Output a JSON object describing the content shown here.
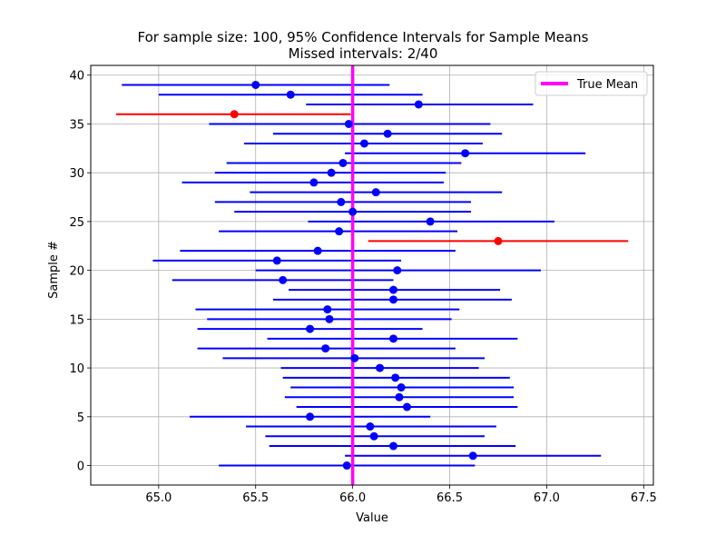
{
  "chart_data": {
    "type": "scatter",
    "title": "For sample size: 100, 95% Confidence Intervals for Sample Means",
    "subtitle": "Missed intervals: 2/40",
    "xlabel": "Value",
    "ylabel": "Sample #",
    "xlim": [
      64.65,
      67.55
    ],
    "ylim": [
      -2,
      41
    ],
    "xticks": [
      "65.0",
      "65.5",
      "66.0",
      "66.5",
      "67.0",
      "67.5"
    ],
    "yticks": [
      "0",
      "5",
      "10",
      "15",
      "20",
      "25",
      "30",
      "35",
      "40"
    ],
    "grid": true,
    "legend_position": "top-right",
    "true_mean": 66.0,
    "true_mean_label": "True Mean",
    "colors": {
      "hit": "#0000ff",
      "miss": "#ff0000",
      "true_mean": "#ff00ff"
    },
    "intervals": [
      {
        "sample": 0,
        "mean": 65.97,
        "low": 65.31,
        "high": 66.63,
        "missed": false
      },
      {
        "sample": 1,
        "mean": 66.62,
        "low": 65.96,
        "high": 67.28,
        "missed": false
      },
      {
        "sample": 2,
        "mean": 66.21,
        "low": 65.57,
        "high": 66.84,
        "missed": false
      },
      {
        "sample": 3,
        "mean": 66.11,
        "low": 65.55,
        "high": 66.68,
        "missed": false
      },
      {
        "sample": 4,
        "mean": 66.09,
        "low": 65.45,
        "high": 66.74,
        "missed": false
      },
      {
        "sample": 5,
        "mean": 65.78,
        "low": 65.16,
        "high": 66.4,
        "missed": false
      },
      {
        "sample": 6,
        "mean": 66.28,
        "low": 65.71,
        "high": 66.85,
        "missed": false
      },
      {
        "sample": 7,
        "mean": 66.24,
        "low": 65.65,
        "high": 66.83,
        "missed": false
      },
      {
        "sample": 8,
        "mean": 66.25,
        "low": 65.68,
        "high": 66.83,
        "missed": false
      },
      {
        "sample": 9,
        "mean": 66.22,
        "low": 65.64,
        "high": 66.81,
        "missed": false
      },
      {
        "sample": 10,
        "mean": 66.14,
        "low": 65.63,
        "high": 66.65,
        "missed": false
      },
      {
        "sample": 11,
        "mean": 66.01,
        "low": 65.33,
        "high": 66.68,
        "missed": false
      },
      {
        "sample": 12,
        "mean": 65.86,
        "low": 65.2,
        "high": 66.53,
        "missed": false
      },
      {
        "sample": 13,
        "mean": 66.21,
        "low": 65.56,
        "high": 66.85,
        "missed": false
      },
      {
        "sample": 14,
        "mean": 65.78,
        "low": 65.2,
        "high": 66.36,
        "missed": false
      },
      {
        "sample": 15,
        "mean": 65.88,
        "low": 65.25,
        "high": 66.51,
        "missed": false
      },
      {
        "sample": 16,
        "mean": 65.87,
        "low": 65.19,
        "high": 66.55,
        "missed": false
      },
      {
        "sample": 17,
        "mean": 66.21,
        "low": 65.59,
        "high": 66.82,
        "missed": false
      },
      {
        "sample": 18,
        "mean": 66.21,
        "low": 65.67,
        "high": 66.76,
        "missed": false
      },
      {
        "sample": 19,
        "mean": 65.64,
        "low": 65.07,
        "high": 66.21,
        "missed": false
      },
      {
        "sample": 20,
        "mean": 66.23,
        "low": 65.5,
        "high": 66.97,
        "missed": false
      },
      {
        "sample": 21,
        "mean": 65.61,
        "low": 64.97,
        "high": 66.25,
        "missed": false
      },
      {
        "sample": 22,
        "mean": 65.82,
        "low": 65.11,
        "high": 66.53,
        "missed": false
      },
      {
        "sample": 23,
        "mean": 66.75,
        "low": 66.08,
        "high": 67.42,
        "missed": true
      },
      {
        "sample": 24,
        "mean": 65.93,
        "low": 65.31,
        "high": 66.54,
        "missed": false
      },
      {
        "sample": 25,
        "mean": 66.4,
        "low": 65.77,
        "high": 67.04,
        "missed": false
      },
      {
        "sample": 26,
        "mean": 66.0,
        "low": 65.39,
        "high": 66.61,
        "missed": false
      },
      {
        "sample": 27,
        "mean": 65.94,
        "low": 65.29,
        "high": 66.61,
        "missed": false
      },
      {
        "sample": 28,
        "mean": 66.12,
        "low": 65.47,
        "high": 66.77,
        "missed": false
      },
      {
        "sample": 29,
        "mean": 65.8,
        "low": 65.12,
        "high": 66.47,
        "missed": false
      },
      {
        "sample": 30,
        "mean": 65.89,
        "low": 65.29,
        "high": 66.48,
        "missed": false
      },
      {
        "sample": 31,
        "mean": 65.95,
        "low": 65.35,
        "high": 66.56,
        "missed": false
      },
      {
        "sample": 32,
        "mean": 66.58,
        "low": 65.96,
        "high": 67.2,
        "missed": false
      },
      {
        "sample": 33,
        "mean": 66.06,
        "low": 65.44,
        "high": 66.67,
        "missed": false
      },
      {
        "sample": 34,
        "mean": 66.18,
        "low": 65.59,
        "high": 66.77,
        "missed": false
      },
      {
        "sample": 35,
        "mean": 65.98,
        "low": 65.26,
        "high": 66.71,
        "missed": false
      },
      {
        "sample": 36,
        "mean": 65.39,
        "low": 64.78,
        "high": 65.99,
        "missed": true
      },
      {
        "sample": 37,
        "mean": 66.34,
        "low": 65.76,
        "high": 66.93,
        "missed": false
      },
      {
        "sample": 38,
        "mean": 65.68,
        "low": 65.0,
        "high": 66.36,
        "missed": false
      },
      {
        "sample": 39,
        "mean": 65.5,
        "low": 64.81,
        "high": 66.19,
        "missed": false
      }
    ]
  }
}
